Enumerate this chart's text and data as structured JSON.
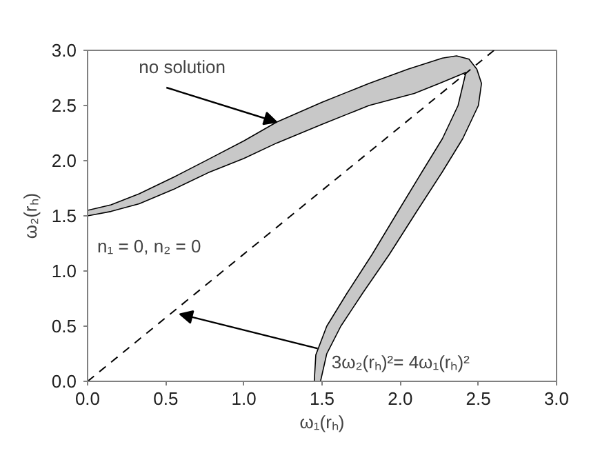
{
  "chart_data": {
    "type": "area",
    "xlabel": "ω₁(rₕ)",
    "ylabel": "ω₂(rₕ)",
    "xlim": [
      0,
      3
    ],
    "ylim": [
      0,
      3
    ],
    "xticks": [
      {
        "value": 0,
        "label": "0.0"
      },
      0.5,
      {
        "value": 1,
        "label": "1.0"
      },
      1.5,
      {
        "value": 2,
        "label": "2.0"
      },
      2.5,
      {
        "value": 3,
        "label": "3.0"
      }
    ],
    "yticks": [
      {
        "value": 0,
        "label": "0.0"
      },
      0.5,
      {
        "value": 1,
        "label": "1.0"
      },
      1.5,
      {
        "value": 2,
        "label": "2.0"
      },
      2.5,
      {
        "value": 3,
        "label": "3.0"
      }
    ],
    "grid": false,
    "series": [
      {
        "color": "#c8c8c8",
        "x": [
          0,
          0.15,
          0.33,
          0.55,
          0.77,
          1.0,
          1.21,
          1.5,
          1.8,
          2.05,
          2.27,
          2.36,
          2.44,
          2.49,
          2.52,
          2.5,
          2.4,
          2.27,
          2.11,
          1.93,
          1.76,
          1.62,
          1.53,
          1.49,
          1.45,
          1.46,
          1.53,
          1.66,
          1.82,
          1.99,
          2.14,
          2.27,
          2.37,
          2.42,
          2.25,
          2.09,
          1.8,
          1.5,
          1.21,
          1.0,
          0.77,
          0.55,
          0.33,
          0.15,
          0
        ],
        "values": [
          1.55,
          1.6,
          1.7,
          1.85,
          2.01,
          2.18,
          2.35,
          2.53,
          2.7,
          2.83,
          2.93,
          2.95,
          2.92,
          2.83,
          2.7,
          2.5,
          2.2,
          1.9,
          1.55,
          1.15,
          0.8,
          0.5,
          0.25,
          0,
          0,
          0.24,
          0.5,
          0.8,
          1.15,
          1.55,
          1.9,
          2.2,
          2.5,
          2.8,
          2.7,
          2.61,
          2.5,
          2.33,
          2.16,
          2.02,
          1.89,
          1.74,
          1.61,
          1.54,
          1.5
        ]
      },
      {
        "type": "line",
        "color": "#000000",
        "line_style": "dashed",
        "x": [
          0,
          2.6
        ],
        "values": [
          0,
          3.0
        ]
      }
    ],
    "annotations": [
      {
        "text": "no solution",
        "x": 1.21,
        "y": 2.35
      },
      {
        "text": "3ω₂(rₕ)²= 4ω₁(rₕ)²",
        "x": 0.59,
        "y": 0.61
      },
      "n₁ = 0, n₂ = 0"
    ]
  }
}
